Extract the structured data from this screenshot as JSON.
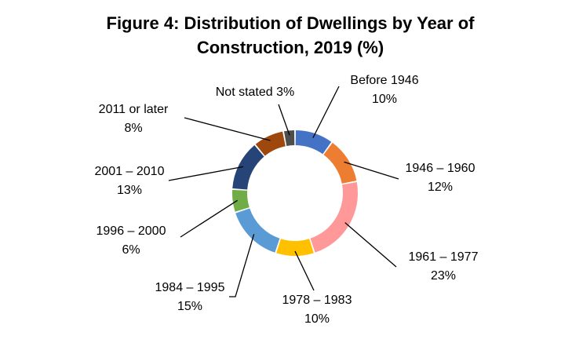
{
  "chart_data": {
    "type": "donut",
    "title": "Figure 4: Distribution of Dwellings by Year of Construction, 2019 (%)",
    "categories": [
      "Before 1946",
      "1946 – 1960",
      "1961 – 1977",
      "1978 – 1983",
      "1984 – 1995",
      "1996 – 2000",
      "2001 – 2010",
      "2011 or later",
      "Not stated"
    ],
    "values": [
      10,
      12,
      23,
      10,
      15,
      6,
      13,
      8,
      3
    ],
    "value_labels": [
      "10%",
      "12%",
      "23%",
      "10%",
      "15%",
      "6%",
      "13%",
      "8%",
      "3%"
    ],
    "colors": [
      "#4472c4",
      "#ed7d31",
      "#ff9999",
      "#ffc000",
      "#5b9bd5",
      "#70ad47",
      "#264478",
      "#9e480e",
      "#4d4d4d"
    ]
  }
}
